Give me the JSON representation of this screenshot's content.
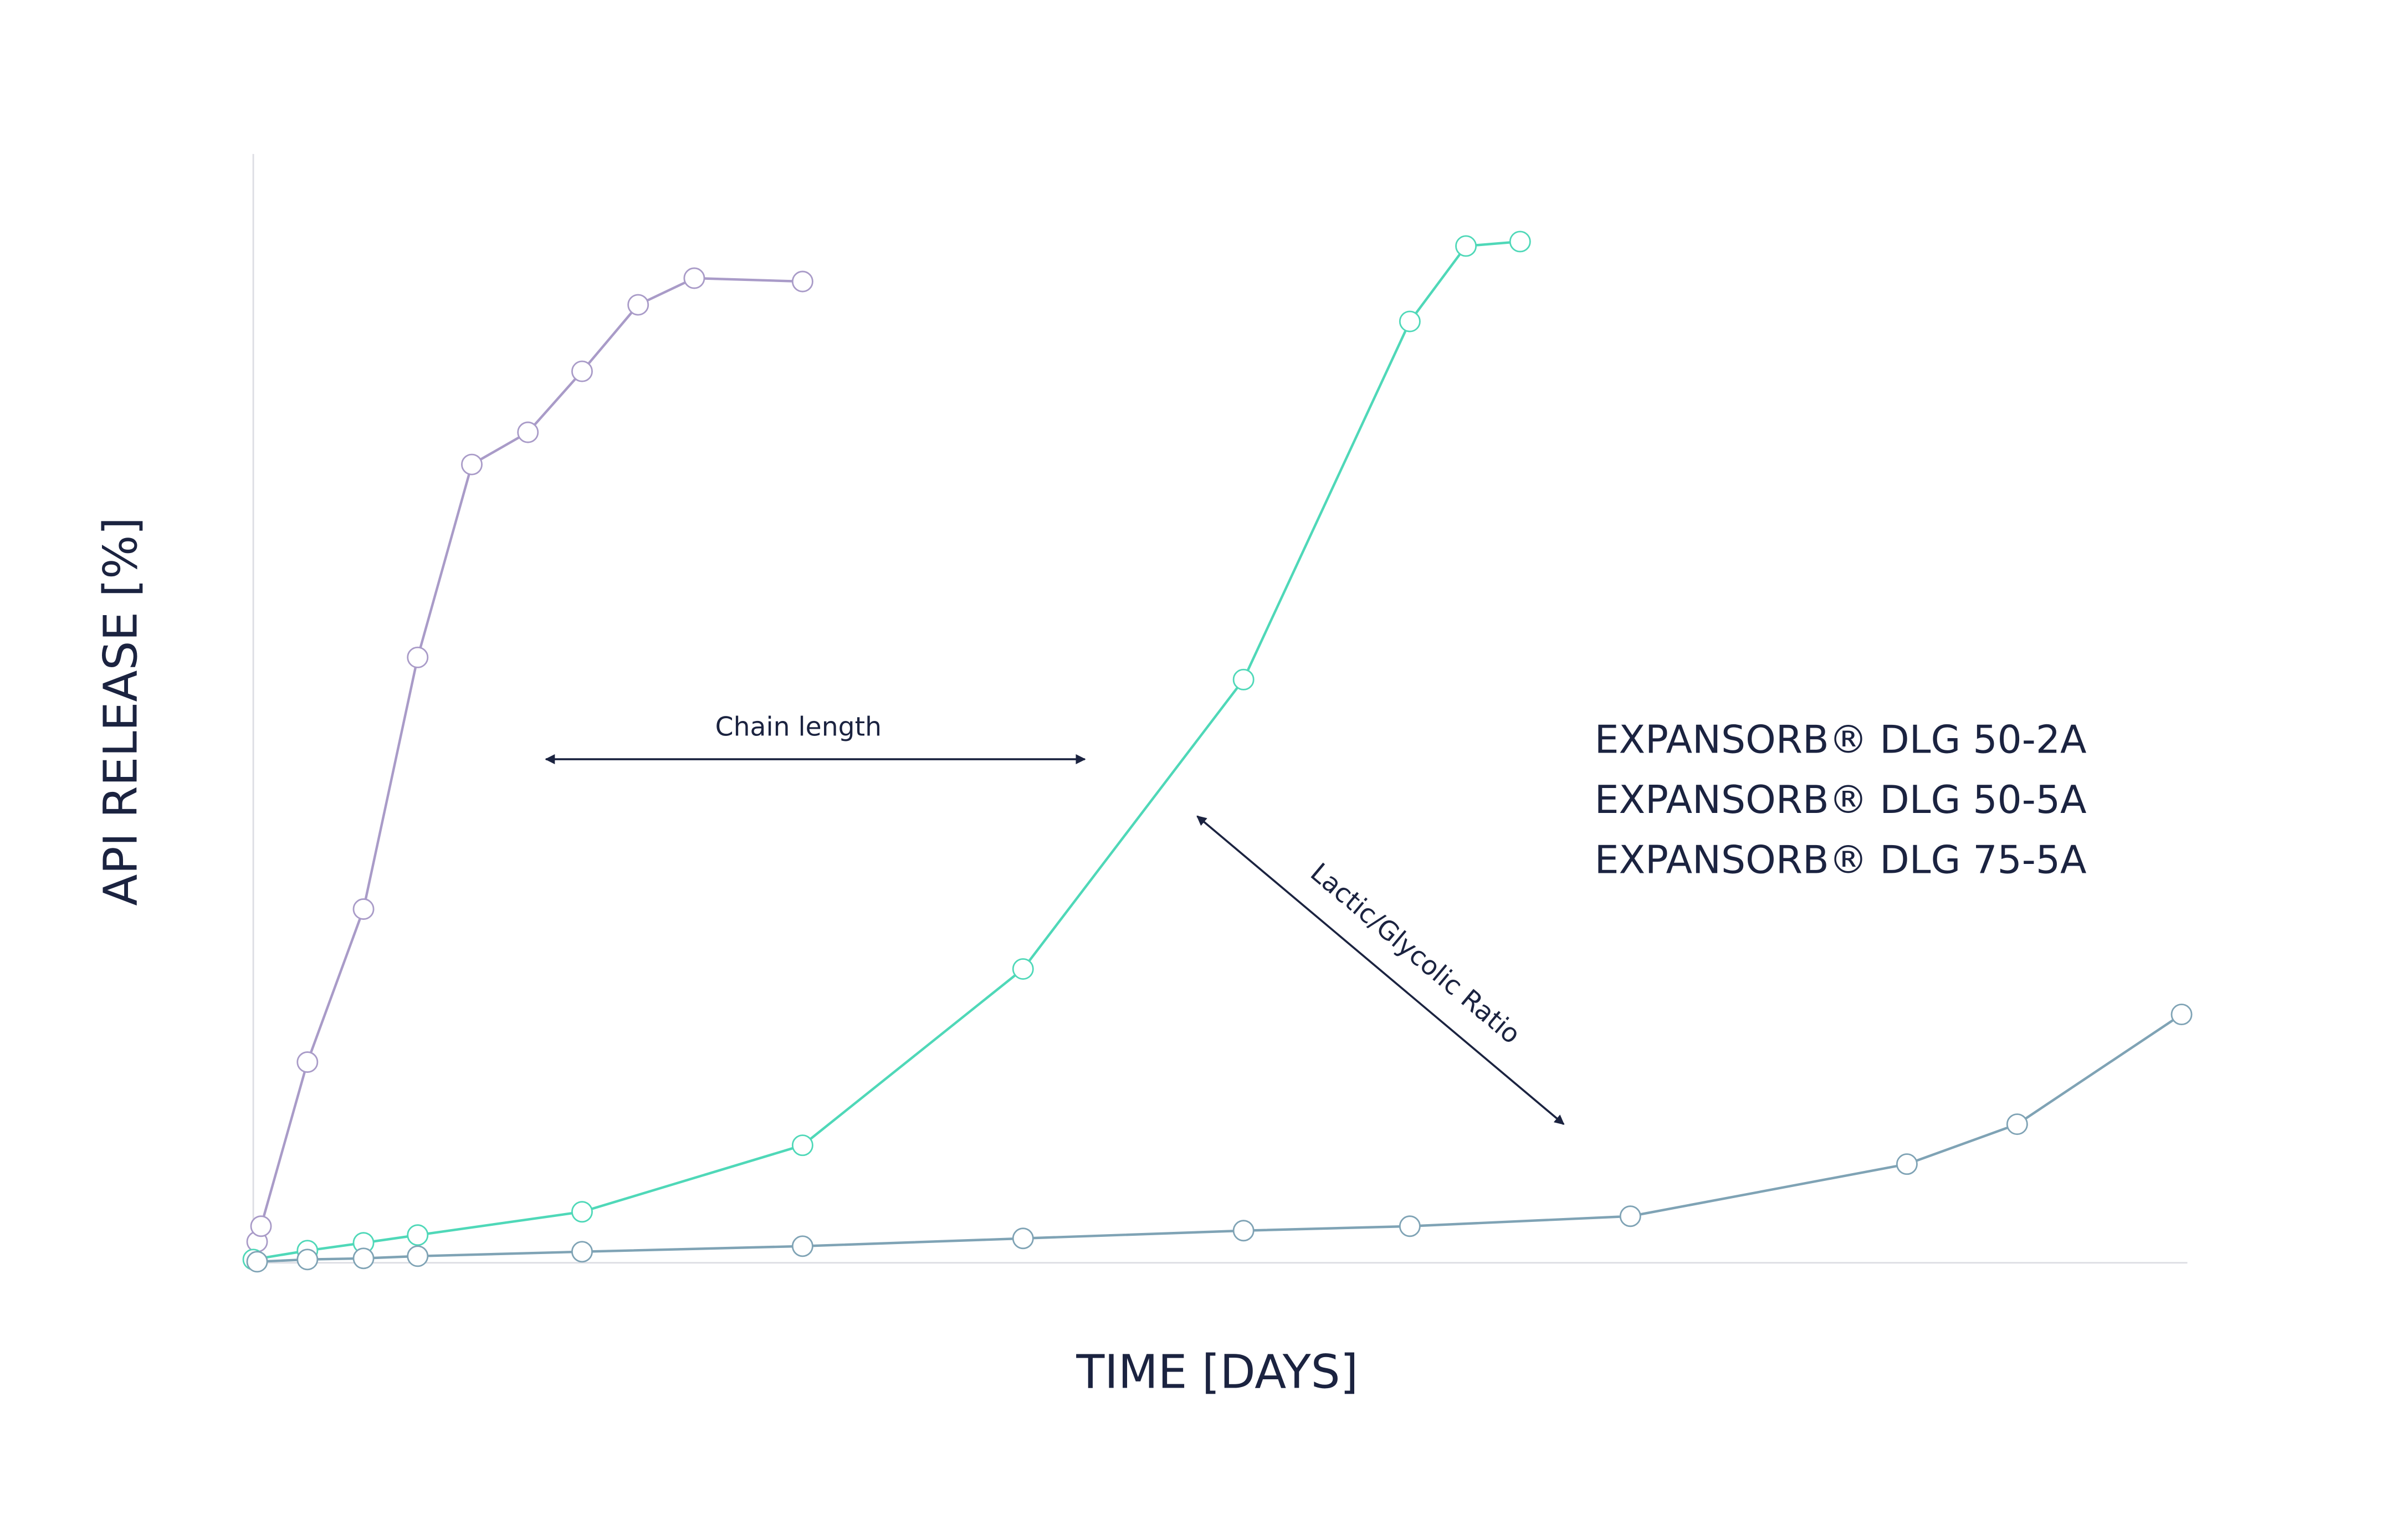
{
  "chart_data": {
    "type": "line",
    "x_label": "TIME [DAYS]",
    "y_label": "API RELEASE [%]",
    "xlim": [
      0,
      100
    ],
    "ylim": [
      0,
      100
    ],
    "grid": false,
    "annotations": [
      "Chain length",
      "Lactic/Glycolic Ratio"
    ],
    "series": [
      {
        "name": "EXPANSORB® DLG 50-2A",
        "color": "#a99bc8",
        "label_color": "#7b5ea7",
        "x": [
          0.2,
          0.4,
          2.8,
          5.7,
          8.5,
          11.3,
          14.2,
          17.0,
          19.9,
          22.8,
          28.4
        ],
        "values": [
          1.9,
          3.3,
          18.1,
          31.9,
          54.6,
          72.0,
          74.9,
          80.4,
          86.4,
          88.8,
          88.5
        ]
      },
      {
        "name": "EXPANSORB® DLG 50-5A",
        "color": "#4fd8b8",
        "label_color": "#1dc7a0",
        "x": [
          0,
          2.8,
          5.7,
          8.5,
          17.0,
          28.4,
          39.8,
          51.2,
          59.8,
          62.7,
          65.5
        ],
        "values": [
          0.3,
          1.1,
          1.8,
          2.5,
          4.6,
          10.6,
          26.5,
          52.6,
          84.9,
          91.7,
          92.1
        ]
      },
      {
        "name": "EXPANSORB® DLG 75-5A",
        "color": "#7fa3b5",
        "label_color": "#2b6f7f",
        "x": [
          0.2,
          2.8,
          5.7,
          8.5,
          17.0,
          28.4,
          39.8,
          51.2,
          59.8,
          71.2,
          85.5,
          91.2,
          99.7
        ],
        "values": [
          0.1,
          0.3,
          0.4,
          0.6,
          1.0,
          1.5,
          2.2,
          2.9,
          3.3,
          4.2,
          8.9,
          12.5,
          22.4
        ]
      }
    ]
  }
}
